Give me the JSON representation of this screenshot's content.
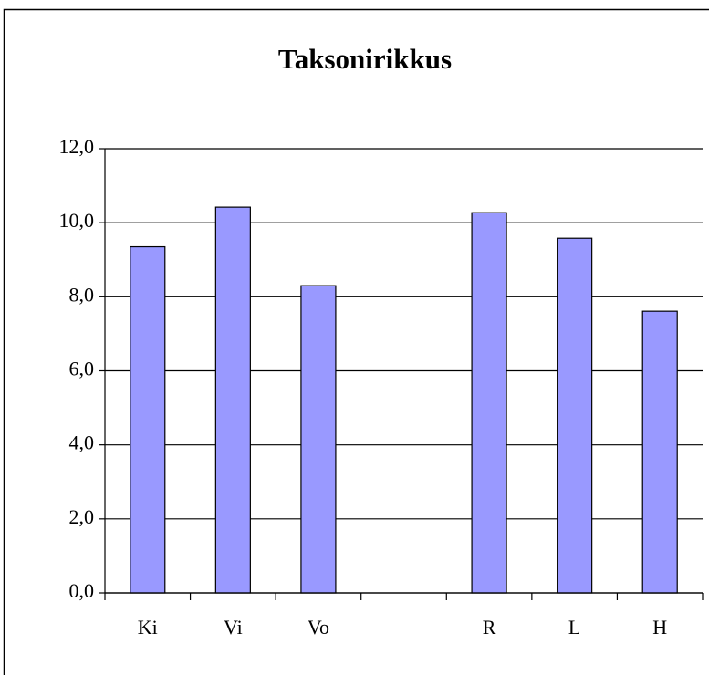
{
  "chart_data": {
    "type": "bar",
    "title": "Taksonirikkus",
    "categories": [
      "Ki",
      "Vi",
      "Vo",
      null,
      "R",
      "L",
      "H"
    ],
    "values": [
      9.35,
      10.42,
      8.3,
      null,
      10.27,
      9.58,
      7.61
    ],
    "color": "#9999ff",
    "ylim": [
      0,
      12
    ],
    "yticks": [
      {
        "value": 0,
        "label": "0,0"
      },
      {
        "value": 2,
        "label": "2,0"
      },
      {
        "value": 4,
        "label": "4,0"
      },
      {
        "value": 6,
        "label": "6,0"
      },
      {
        "value": 8,
        "label": "8,0"
      },
      {
        "value": 10,
        "label": "10,0"
      },
      {
        "value": 12,
        "label": "12,0"
      }
    ],
    "grid": true
  }
}
